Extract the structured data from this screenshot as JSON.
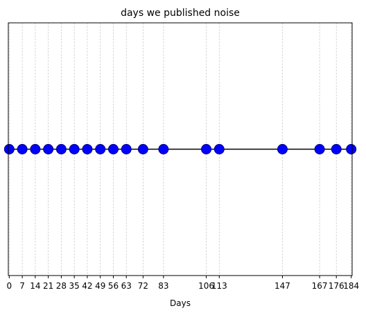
{
  "chart_data": {
    "type": "scatter",
    "title": "days we published noise",
    "xlabel": "Days",
    "ylabel": "",
    "x": [
      0,
      7,
      14,
      21,
      28,
      35,
      42,
      49,
      56,
      63,
      72,
      83,
      106,
      113,
      147,
      167,
      176,
      184
    ],
    "y": [
      0,
      0,
      0,
      0,
      0,
      0,
      0,
      0,
      0,
      0,
      0,
      0,
      0,
      0,
      0,
      0,
      0,
      0
    ],
    "xticks": [
      0,
      7,
      14,
      21,
      28,
      35,
      42,
      49,
      56,
      63,
      72,
      83,
      106,
      113,
      147,
      167,
      176,
      184
    ],
    "xtick_labels": [
      "0",
      "7",
      "14",
      "21",
      "28",
      "35",
      "42",
      "49",
      "56",
      "63",
      "72",
      "83",
      "106",
      "113",
      "147",
      "167",
      "176",
      "184"
    ],
    "xlim": [
      -0.5,
      184.5
    ],
    "ylim": [
      -1,
      1
    ],
    "grid": "x-dashed",
    "line": true,
    "colors": {
      "marker": "#0000ff",
      "marker_edge": "#000080",
      "line": "#000000",
      "grid": "#c0c0c0"
    }
  }
}
